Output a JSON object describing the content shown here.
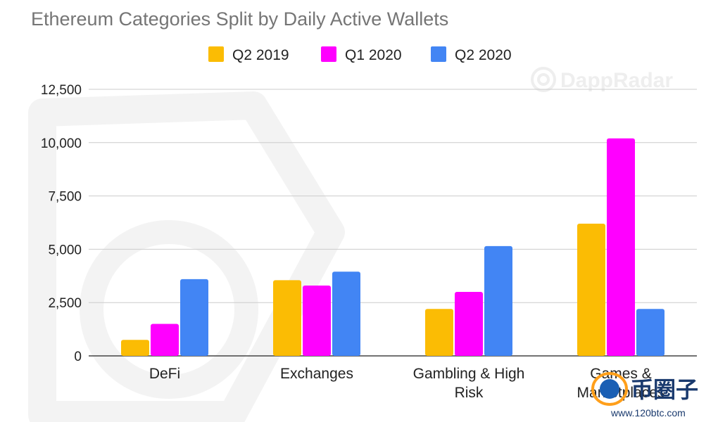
{
  "chart_data": {
    "type": "bar",
    "title": "Ethereum Categories Split by Daily Active Wallets",
    "categories": [
      [
        "DeFi"
      ],
      [
        "Exchanges"
      ],
      [
        "Gambling & High",
        "Risk"
      ],
      [
        "Games &",
        "Marketplaces"
      ]
    ],
    "series": [
      {
        "name": "Q2 2019",
        "color": "#fbbc04",
        "values": [
          750,
          3550,
          2200,
          6200
        ]
      },
      {
        "name": "Q1 2020",
        "color": "#ff00ff",
        "values": [
          1500,
          3300,
          3000,
          10200
        ]
      },
      {
        "name": "Q2 2020",
        "color": "#4285f4",
        "values": [
          3600,
          3950,
          5150,
          2200
        ]
      }
    ],
    "y_ticks": [
      "0",
      "2,500",
      "5,000",
      "7,500",
      "10,000",
      "12,500"
    ],
    "ylim": [
      0,
      12500
    ],
    "grid": true,
    "legend_position": "top-center"
  },
  "watermarks": {
    "dappradar": "DappRadar",
    "site_name": "币圈子",
    "site_url": "www.120btc.com"
  }
}
